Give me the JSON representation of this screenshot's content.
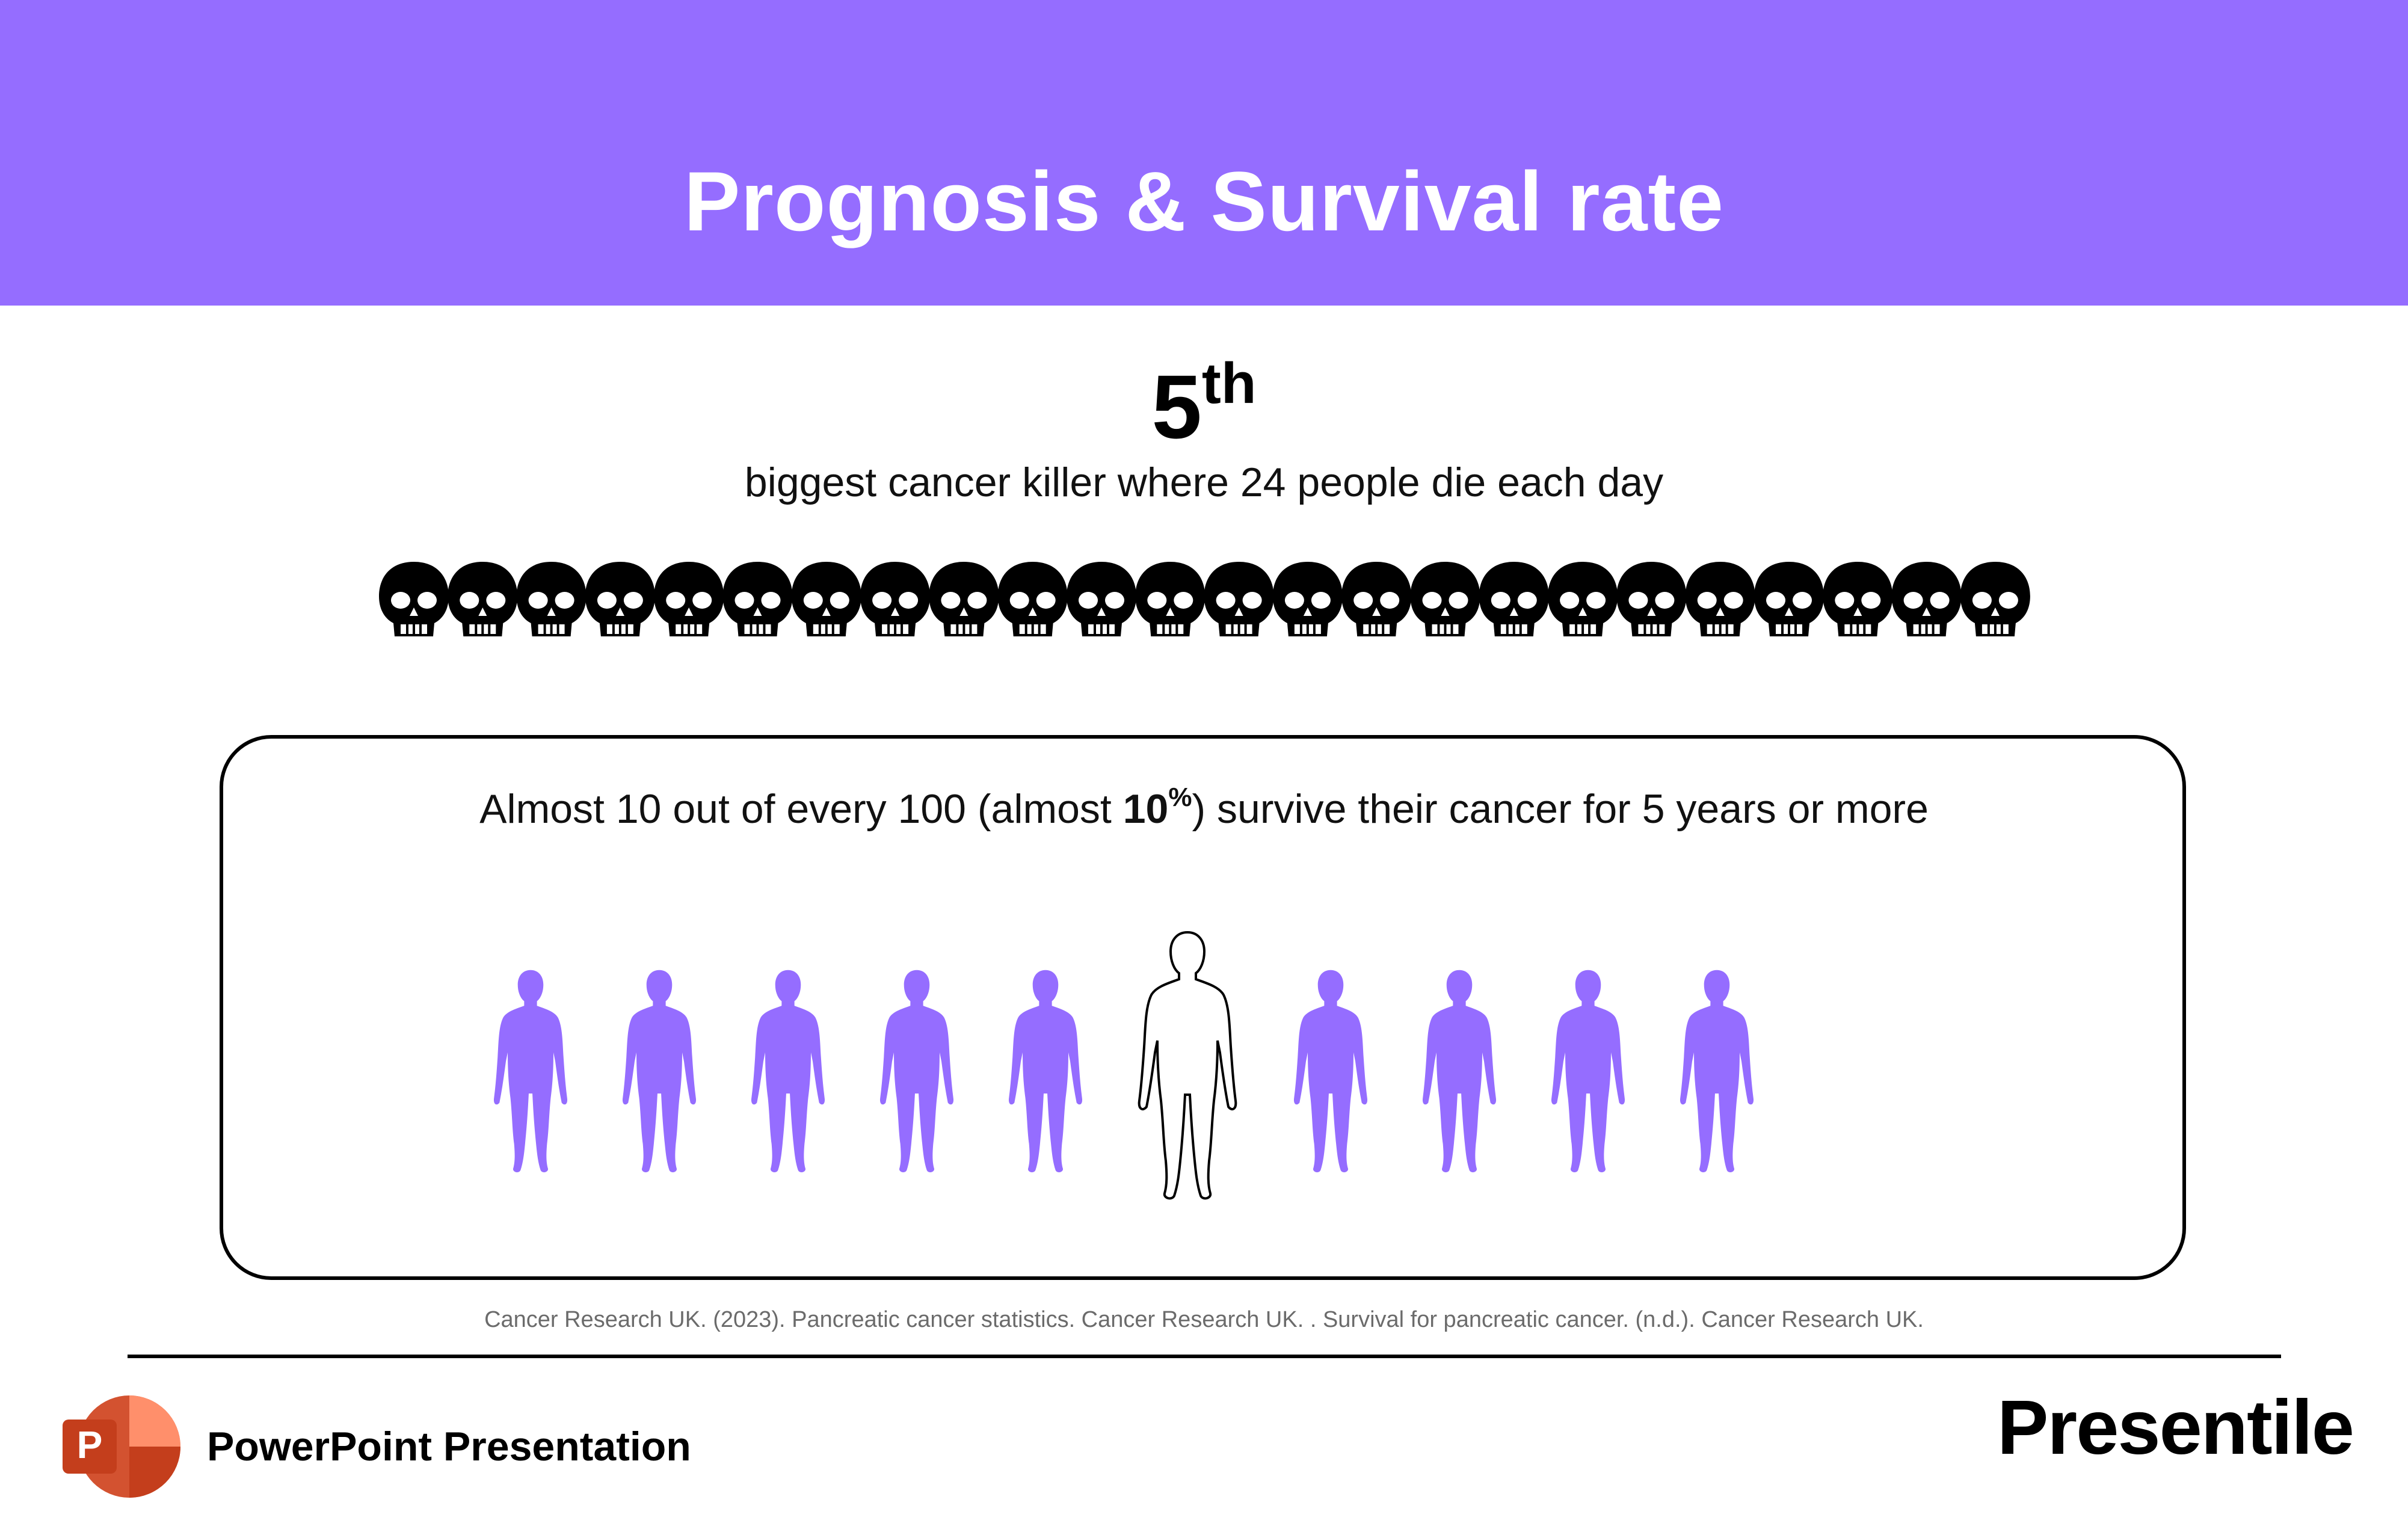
{
  "header": {
    "title": "Prognosis & Survival rate"
  },
  "rank": {
    "number": "5",
    "suffix": "th"
  },
  "subtitle": "biggest cancer killer where 24 people die each day",
  "deaths": {
    "count": 24,
    "icon": "skull-icon",
    "color": "#000000"
  },
  "survival": {
    "text_before": "Almost 10 out of every 100 (almost ",
    "pct_value": "10",
    "pct_symbol": "%",
    "text_after": ") survive their cancer for 5 years or more",
    "total_figures": 10,
    "highlighted_index": 5,
    "filled_color": "#956dff",
    "highlight_color": "#ffffff"
  },
  "citation": "Cancer Research UK. (2023). Pancreatic cancer statistics. Cancer Research UK. .  Survival for pancreatic cancer. (n.d.). Cancer Research UK.",
  "footer": {
    "label": "PowerPoint Presentation",
    "app_icon": "powerpoint-icon",
    "app_icon_letter": "P",
    "brand": "Presentile"
  },
  "colors": {
    "accent": "#956dff",
    "text": "#000000",
    "citation": "#6b6b6b"
  }
}
